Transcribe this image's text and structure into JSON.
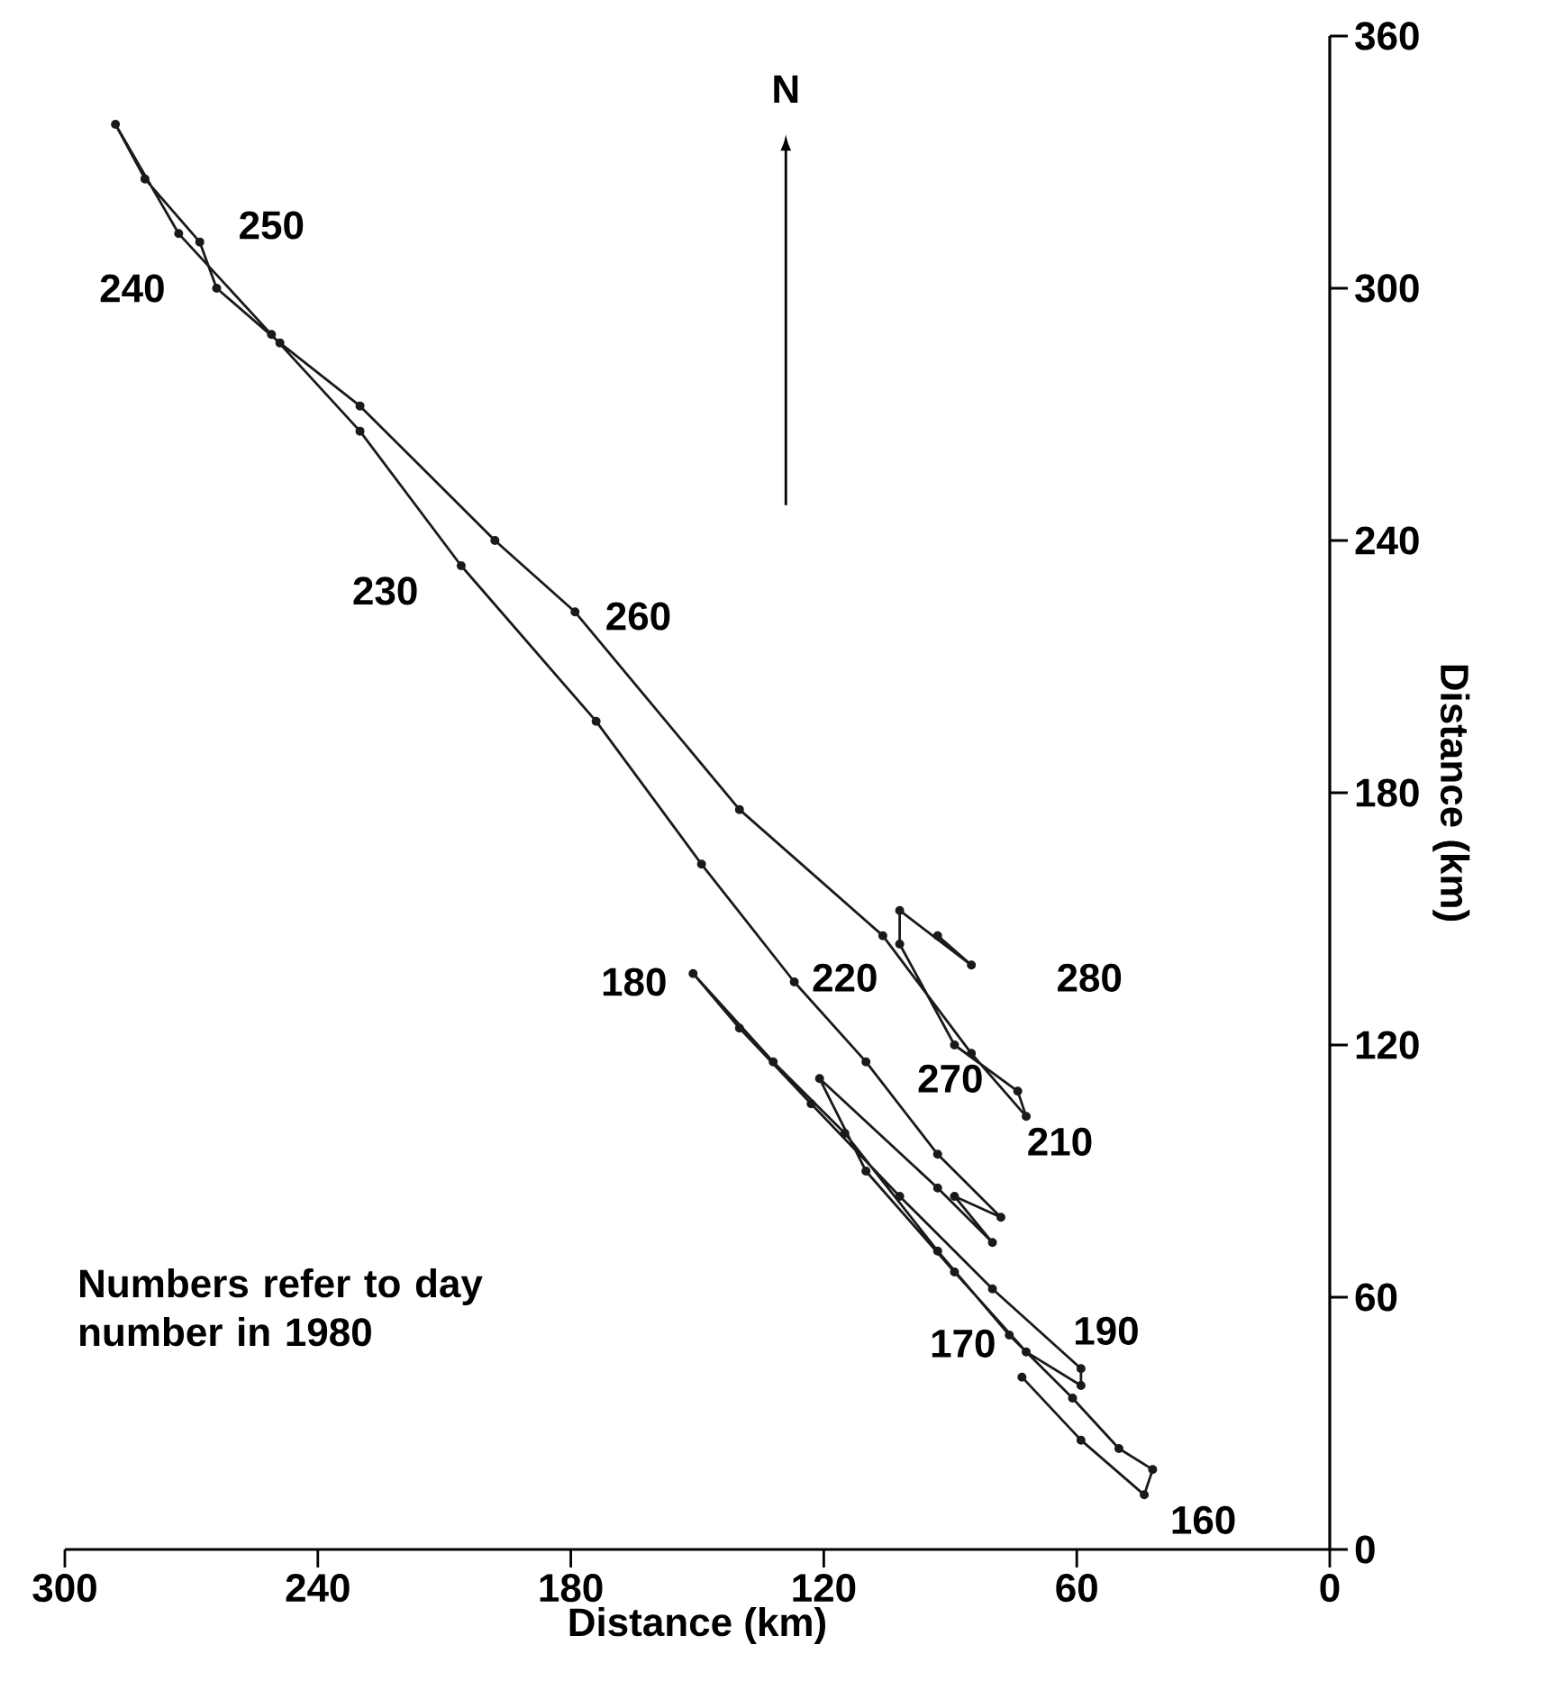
{
  "chart_data": {
    "type": "line",
    "xlabel": "Distance  (km)",
    "ylabel": "Distance  (km)",
    "xlim": [
      300,
      0
    ],
    "xticks": [
      300,
      240,
      180,
      120,
      60,
      0
    ],
    "ylim": [
      0,
      360
    ],
    "yticks": [
      0,
      60,
      120,
      180,
      240,
      300,
      360
    ],
    "marker": "circle",
    "line_style": "solid",
    "grid": false,
    "series": [
      {
        "color": "#1a1a1a",
        "x": [
          73,
          59,
          44,
          42,
          50,
          61,
          76,
          93,
          115,
          132,
          151,
          140,
          123,
          102,
          80,
          59,
          59,
          72,
          89,
          110,
          121,
          93,
          80,
          89,
          78,
          93,
          110,
          127,
          149,
          174,
          206,
          230,
          251,
          273,
          288,
          281,
          268,
          264,
          249,
          230,
          198,
          179,
          140,
          106,
          85,
          72,
          74,
          89,
          102,
          102,
          85,
          93
        ],
        "values": [
          41,
          26,
          13,
          19,
          24,
          36,
          51,
          71,
          99,
          116,
          137,
          124,
          106,
          84,
          62,
          43,
          39,
          47,
          66,
          90,
          112,
          86,
          73,
          84,
          79,
          94,
          116,
          135,
          163,
          197,
          234,
          266,
          289,
          313,
          339,
          326,
          311,
          300,
          287,
          272,
          240,
          223,
          176,
          146,
          118,
          103,
          109,
          120,
          144,
          152,
          139,
          146
        ]
      }
    ],
    "annotations": [
      "Numbers refer to day number in 1980",
      "N",
      "160",
      "170",
      "180",
      "190",
      "210",
      "220",
      "230",
      "240",
      "250",
      "260",
      "270",
      "280"
    ]
  }
}
